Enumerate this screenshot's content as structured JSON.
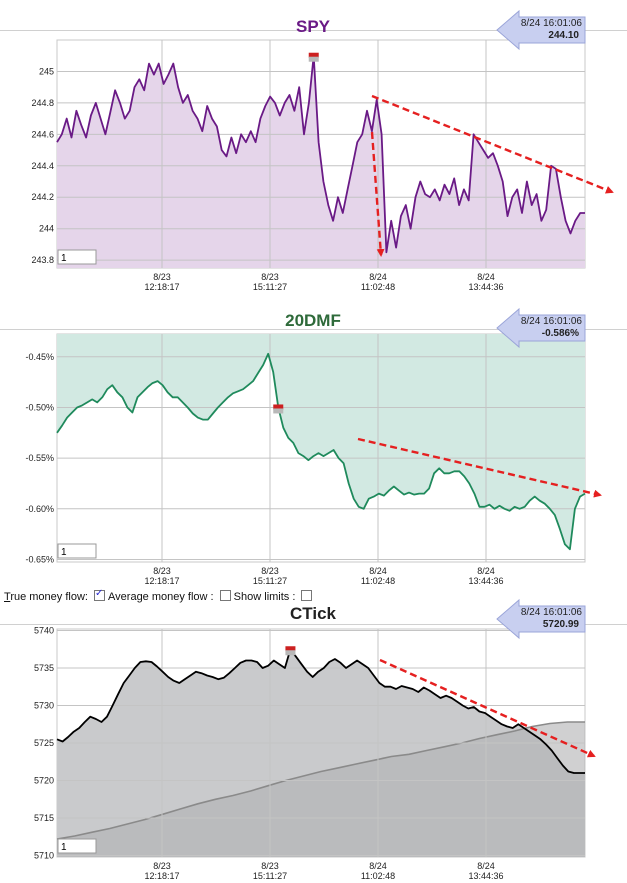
{
  "controls": {
    "true_money_flow_prefix": "T",
    "true_money_flow_rest": "rue money flow:",
    "average_money_flow_label": "Average money flow :",
    "average_money_flow_checked": true,
    "show_limits_label": "Show limits :",
    "show_limits_checked": false
  },
  "colors": {
    "spy_line": "#6a1a86",
    "spy_fill": "#e5d5ea",
    "dmf_line": "#1f8a5c",
    "dmf_fill": "#d2e9e2",
    "ctick_line": "#000000",
    "ctick_fill": "#c9cacc",
    "ctick_avg_line": "#8a8a8a",
    "trend_arrow": "#e52020",
    "callout_fill": "#c8cff0",
    "title_spy": "#6a1a86",
    "title_dmf": "#2e6a3a",
    "title_ctick": "#222222"
  },
  "chart_data": [
    {
      "type": "line",
      "title": "SPY",
      "callout": {
        "time": "8/24 16:01:06",
        "value": "244.10"
      },
      "input_value": "1",
      "x_tick_labels": [
        [
          "8/23",
          "12:18:17"
        ],
        [
          "8/23",
          "15:11:27"
        ],
        [
          "8/24",
          "11:02:48"
        ],
        [
          "8/24",
          "13:44:36"
        ]
      ],
      "y_ticks": [
        "243.8",
        "244",
        "244.2",
        "244.4",
        "244.6",
        "244.8",
        "245"
      ],
      "ylim": [
        243.75,
        245.2
      ],
      "grid": true,
      "series": [
        {
          "values": [
            244.55,
            244.6,
            244.7,
            244.58,
            244.75,
            244.66,
            244.58,
            244.72,
            244.8,
            244.7,
            244.6,
            244.74,
            244.88,
            244.8,
            244.7,
            244.75,
            244.9,
            244.95,
            244.88,
            245.05,
            244.98,
            245.05,
            244.92,
            244.98,
            245.05,
            244.9,
            244.8,
            244.85,
            244.75,
            244.7,
            244.62,
            244.78,
            244.7,
            244.65,
            244.5,
            244.46,
            244.58,
            244.48,
            244.6,
            244.55,
            244.62,
            244.55,
            244.7,
            244.78,
            244.84,
            244.8,
            244.72,
            244.8,
            244.85,
            244.75,
            244.9,
            244.6,
            244.8,
            245.1,
            244.55,
            244.3,
            244.15,
            244.05,
            244.2,
            244.1,
            244.25,
            244.4,
            244.55,
            244.6,
            244.75,
            244.62,
            244.82,
            244.6,
            243.85,
            244.05,
            243.88,
            244.08,
            244.15,
            244.0,
            244.2,
            244.3,
            244.22,
            244.2,
            244.25,
            244.18,
            244.28,
            244.22,
            244.32,
            244.15,
            244.25,
            244.18,
            244.6,
            244.55,
            244.5,
            244.45,
            244.48,
            244.4,
            244.3,
            244.08,
            244.2,
            244.25,
            244.1,
            244.3,
            244.15,
            244.22,
            244.05,
            244.12,
            244.4,
            244.38,
            244.2,
            244.05,
            243.97,
            244.05,
            244.1,
            244.1
          ]
        }
      ]
    },
    {
      "type": "line",
      "title": "20DMF",
      "callout": {
        "time": "8/24 16:01:06",
        "value": "-0.586%"
      },
      "input_value": "1",
      "x_tick_labels": [
        [
          "8/23",
          "12:18:17"
        ],
        [
          "8/23",
          "15:11:27"
        ],
        [
          "8/24",
          "11:02:48"
        ],
        [
          "8/24",
          "13:44:36"
        ]
      ],
      "y_ticks": [
        "-0.45%",
        "-0.50%",
        "-0.55%",
        "-0.60%",
        "-0.65%"
      ],
      "ylim": [
        -0.6525,
        -0.4275
      ],
      "grid": true,
      "series": [
        {
          "values": [
            -0.525,
            -0.518,
            -0.51,
            -0.505,
            -0.5,
            -0.498,
            -0.495,
            -0.492,
            -0.495,
            -0.49,
            -0.482,
            -0.478,
            -0.485,
            -0.49,
            -0.5,
            -0.505,
            -0.49,
            -0.485,
            -0.48,
            -0.476,
            -0.474,
            -0.478,
            -0.485,
            -0.49,
            -0.49,
            -0.495,
            -0.5,
            -0.506,
            -0.51,
            -0.512,
            -0.512,
            -0.506,
            -0.5,
            -0.495,
            -0.49,
            -0.486,
            -0.484,
            -0.482,
            -0.478,
            -0.474,
            -0.466,
            -0.458,
            -0.447,
            -0.465,
            -0.5,
            -0.52,
            -0.53,
            -0.535,
            -0.545,
            -0.548,
            -0.552,
            -0.548,
            -0.545,
            -0.548,
            -0.545,
            -0.542,
            -0.55,
            -0.555,
            -0.575,
            -0.59,
            -0.598,
            -0.6,
            -0.59,
            -0.588,
            -0.585,
            -0.587,
            -0.582,
            -0.578,
            -0.582,
            -0.586,
            -0.584,
            -0.586,
            -0.585,
            -0.585,
            -0.58,
            -0.565,
            -0.56,
            -0.565,
            -0.565,
            -0.563,
            -0.563,
            -0.568,
            -0.575,
            -0.585,
            -0.598,
            -0.598,
            -0.596,
            -0.6,
            -0.597,
            -0.6,
            -0.602,
            -0.598,
            -0.6,
            -0.598,
            -0.592,
            -0.588,
            -0.592,
            -0.595,
            -0.6,
            -0.606,
            -0.62,
            -0.635,
            -0.64,
            -0.6,
            -0.588,
            -0.585
          ]
        }
      ]
    },
    {
      "type": "line",
      "title": "CTick",
      "callout": {
        "time": "8/24 16:01:06",
        "value": "5720.99"
      },
      "input_value": "1",
      "x_tick_labels": [
        [
          "8/23",
          "12:18:17"
        ],
        [
          "8/23",
          "15:11:27"
        ],
        [
          "8/24",
          "11:02:48"
        ],
        [
          "8/24",
          "13:44:36"
        ]
      ],
      "y_ticks": [
        "5710",
        "5715",
        "5720",
        "5725",
        "5730",
        "5735",
        "5740"
      ],
      "ylim": [
        5709.8,
        5740.2
      ],
      "grid": true,
      "series": [
        {
          "values": [
            5725.5,
            5725.2,
            5725.8,
            5726.5,
            5727.0,
            5727.8,
            5728.5,
            5728.2,
            5727.8,
            5728.5,
            5730.0,
            5731.5,
            5733.0,
            5734.0,
            5735.0,
            5735.8,
            5735.9,
            5735.8,
            5735.2,
            5734.5,
            5733.8,
            5733.3,
            5733.0,
            5733.5,
            5734.0,
            5734.5,
            5734.3,
            5734.0,
            5733.8,
            5733.5,
            5733.7,
            5734.3,
            5735.0,
            5735.7,
            5736.0,
            5736.0,
            5735.8,
            5735.0,
            5735.3,
            5736.0,
            5735.5,
            5735.0,
            5737.5,
            5736.5,
            5735.5,
            5734.5,
            5733.8,
            5734.5,
            5735.0,
            5735.8,
            5736.2,
            5735.7,
            5735.0,
            5735.5,
            5736.0,
            5735.5,
            5735.0,
            5734.0,
            5733.0,
            5732.5,
            5732.5,
            5732.2,
            5732.6,
            5732.4,
            5732.2,
            5731.8,
            5732.4,
            5732.0,
            5731.5,
            5731.0,
            5731.3,
            5731.0,
            5730.5,
            5730.0,
            5729.6,
            5729.8,
            5729.2,
            5729.0,
            5728.5,
            5728.0,
            5727.5,
            5727.2,
            5727.0,
            5727.5,
            5727.0,
            5726.5,
            5726.0,
            5725.5,
            5724.8,
            5724.0,
            5723.0,
            5722.0,
            5721.2,
            5721.0,
            5721.0,
            5721.0
          ]
        },
        {
          "values": [
            5712.2,
            5712.6,
            5713.1,
            5713.6,
            5714.2,
            5714.8,
            5715.5,
            5716.2,
            5716.9,
            5717.5,
            5718.0,
            5718.6,
            5719.3,
            5720.0,
            5720.6,
            5721.2,
            5721.7,
            5722.2,
            5722.7,
            5723.2,
            5723.5,
            5724.0,
            5724.5,
            5725.0,
            5725.6,
            5726.1,
            5726.6,
            5727.2,
            5727.6,
            5727.8,
            5727.8
          ]
        }
      ]
    }
  ]
}
